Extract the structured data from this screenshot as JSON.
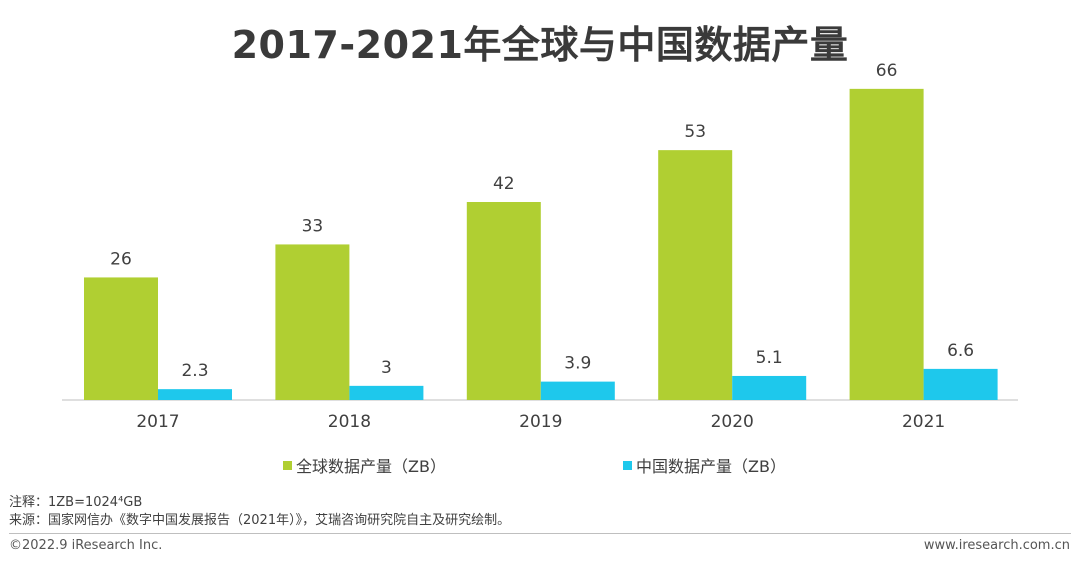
{
  "chart_data": {
    "type": "bar",
    "title": "2017-2021年全球与中国数据产量",
    "categories": [
      "2017",
      "2018",
      "2019",
      "2020",
      "2021"
    ],
    "series": [
      {
        "name": "全球数据产量（ZB）",
        "color": "#b0cf32",
        "values": [
          26,
          33,
          42,
          53,
          66
        ],
        "labels": [
          "26",
          "33",
          "42",
          "53",
          "66"
        ]
      },
      {
        "name": "中国数据产量（ZB）",
        "color": "#1ec8ec",
        "values": [
          2.3,
          3,
          3.9,
          5.1,
          6.6
        ],
        "labels": [
          "2.3",
          "3",
          "3.9",
          "5.1",
          "6.6"
        ]
      }
    ],
    "xlabel": "",
    "ylabel": "",
    "ylim": [
      0,
      70
    ],
    "grid": false,
    "legend": "bottom"
  },
  "notes": {
    "note_line": "注释：1ZB=1024⁴GB",
    "source_line": "来源：国家网信办《数字中国发展报告（2021年）》，艾瑞咨询研究院自主及研究绘制。"
  },
  "footer": {
    "copyright": "©2022.9 iResearch Inc.",
    "website": "www.iresearch.com.cn"
  }
}
